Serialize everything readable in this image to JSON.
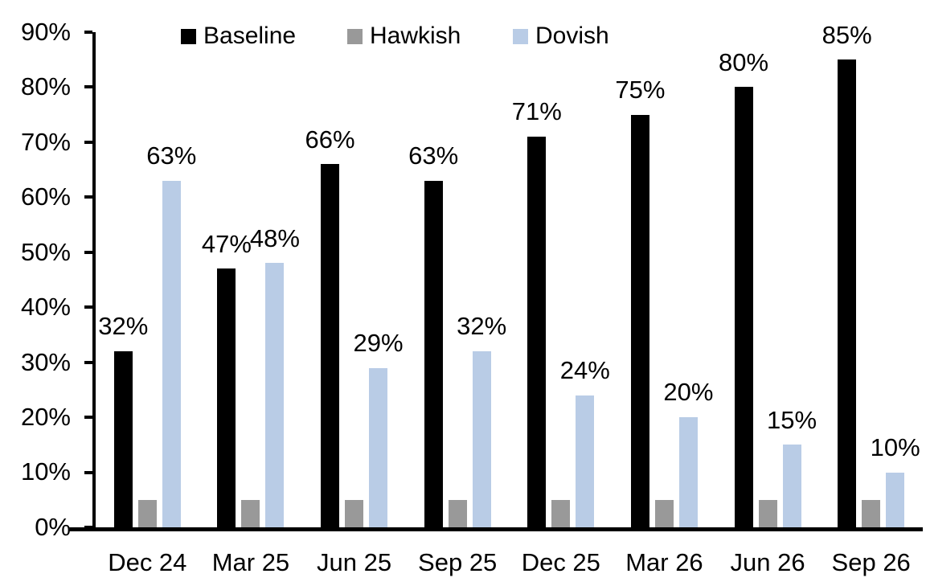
{
  "chart_data": {
    "type": "bar",
    "title": "",
    "categories": [
      "Dec 24",
      "Mar 25",
      "Jun 25",
      "Sep 25",
      "Dec 25",
      "Mar 26",
      "Jun 26",
      "Sep 26"
    ],
    "series": [
      {
        "name": "Baseline",
        "color": "#000000",
        "values": [
          32,
          47,
          66,
          63,
          71,
          75,
          80,
          85
        ],
        "show_value_labels": true
      },
      {
        "name": "Hawkish",
        "color": "#999999",
        "values": [
          5,
          5,
          5,
          5,
          5,
          5,
          5,
          5
        ],
        "show_value_labels": false
      },
      {
        "name": "Dovish",
        "color": "#b9cce6",
        "values": [
          63,
          48,
          29,
          32,
          24,
          20,
          15,
          10
        ],
        "show_value_labels": true
      }
    ],
    "ylim": [
      0,
      90
    ],
    "yticks": [
      0,
      10,
      20,
      30,
      40,
      50,
      60,
      70,
      80,
      90
    ],
    "tick_suffix": "%",
    "label_suffix": "%",
    "xlabel": "",
    "ylabel": "",
    "grid": false,
    "legend_position": "top"
  }
}
